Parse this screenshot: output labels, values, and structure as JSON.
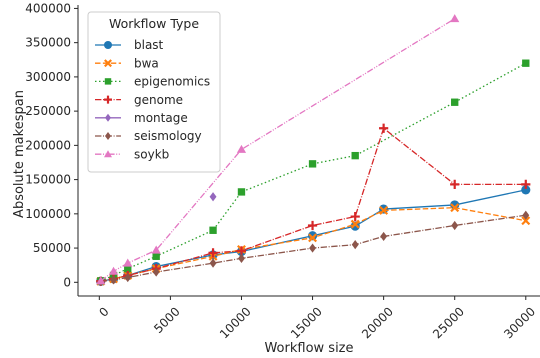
{
  "chart_data": {
    "type": "line",
    "title": "",
    "xlabel": "Workflow size",
    "ylabel": "Absolute makespan",
    "xlim": [
      -1500,
      31000
    ],
    "ylim": [
      -20000,
      405000
    ],
    "xticks": [
      0,
      5000,
      10000,
      15000,
      20000,
      25000,
      30000
    ],
    "yticks": [
      0,
      50000,
      100000,
      150000,
      200000,
      250000,
      300000,
      350000,
      400000
    ],
    "grid": false,
    "legend": {
      "title": "Workflow Type",
      "placement": "top-left"
    },
    "series": [
      {
        "name": "blast",
        "color": "#1f77b4",
        "dash": "solid",
        "marker": "circle",
        "x": [
          100,
          1000,
          2000,
          4000,
          8000,
          10000,
          15000,
          18000,
          20000,
          25000,
          30000
        ],
        "y": [
          1500,
          5000,
          10000,
          23000,
          40000,
          45000,
          68000,
          82000,
          107000,
          113000,
          135000
        ]
      },
      {
        "name": "bwa",
        "color": "#ff7f0e",
        "dash": "dashed",
        "marker": "x",
        "x": [
          100,
          1000,
          2000,
          4000,
          8000,
          10000,
          15000,
          18000,
          20000,
          25000,
          30000
        ],
        "y": [
          1500,
          5000,
          10000,
          20000,
          38000,
          48000,
          65000,
          85000,
          105000,
          109000,
          90000
        ]
      },
      {
        "name": "epigenomics",
        "color": "#2ca02c",
        "dash": "dotted",
        "marker": "square",
        "x": [
          100,
          1000,
          2000,
          4000,
          8000,
          10000,
          15000,
          18000,
          25000,
          30000
        ],
        "y": [
          2000,
          10000,
          20000,
          38000,
          76000,
          132000,
          173000,
          185000,
          263000,
          320000
        ]
      },
      {
        "name": "genome",
        "color": "#d62728",
        "dash": "dashdot",
        "marker": "plus",
        "x": [
          100,
          1000,
          2000,
          4000,
          8000,
          10000,
          15000,
          18000,
          20000,
          25000,
          30000
        ],
        "y": [
          1500,
          5000,
          10000,
          20000,
          43000,
          46000,
          83000,
          96000,
          225000,
          143000,
          143000
        ]
      },
      {
        "name": "montage",
        "color": "#9467bd",
        "dash": "solid",
        "marker": "diamond",
        "x": [
          8000
        ],
        "y": [
          125000
        ]
      },
      {
        "name": "seismology",
        "color": "#8c564b",
        "dash": "dashdot",
        "marker": "diamond",
        "x": [
          100,
          1000,
          2000,
          4000,
          8000,
          10000,
          15000,
          18000,
          20000,
          25000,
          30000
        ],
        "y": [
          1000,
          3500,
          7000,
          15000,
          28000,
          35000,
          50000,
          55000,
          67000,
          83000,
          98000
        ]
      },
      {
        "name": "soykb",
        "color": "#e377c2",
        "dash": "dashdotdot",
        "marker": "triangle",
        "x": [
          100,
          1000,
          2000,
          4000,
          10000,
          25000
        ],
        "y": [
          2000,
          16000,
          28000,
          47000,
          194000,
          385000
        ]
      }
    ]
  }
}
